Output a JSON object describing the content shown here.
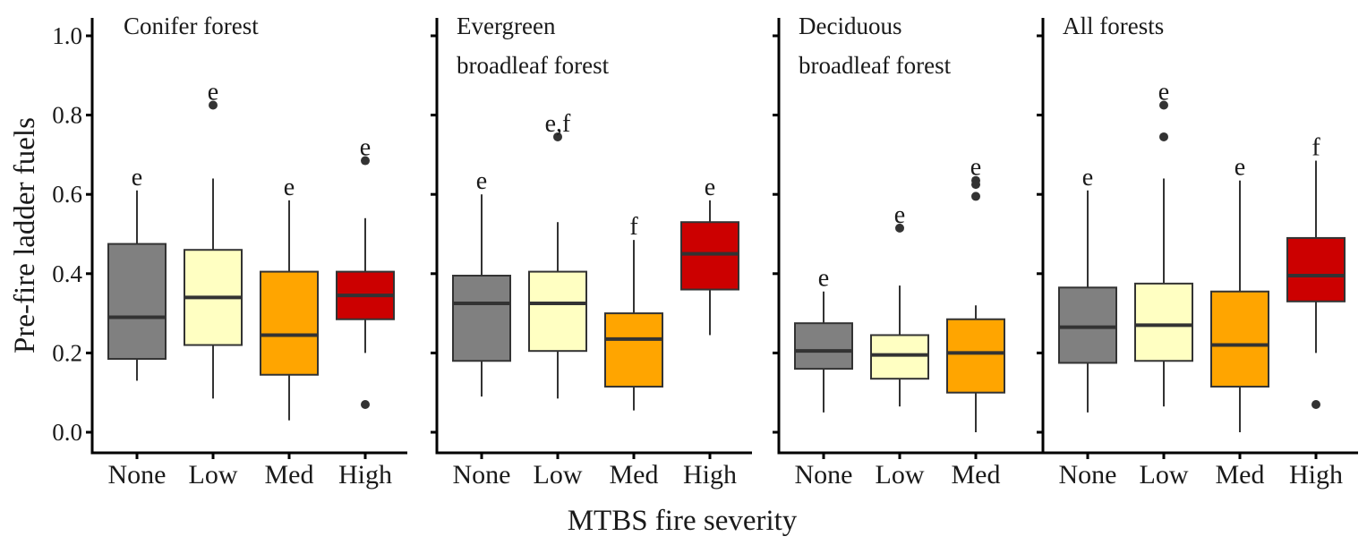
{
  "chart_data": {
    "type": "boxplot",
    "xlabel": "MTBS fire severity",
    "ylabel": "Pre-fire ladder fuels",
    "ylim": [
      0.0,
      1.0
    ],
    "yticks": [
      "0.0",
      "0.2",
      "0.4",
      "0.6",
      "0.8",
      "1.0"
    ],
    "severity_colors": {
      "None": "#808080",
      "Low": "#ffffc2",
      "Med": "#ffa500",
      "High": "#cc0000"
    },
    "panels": [
      {
        "title_lines": [
          "Conifer forest"
        ],
        "categories": [
          "None",
          "Low",
          "Med",
          "High"
        ],
        "boxes": [
          {
            "category": "None",
            "whisker_low": 0.13,
            "q1": 0.185,
            "median": 0.29,
            "q3": 0.475,
            "whisker_high": 0.61,
            "outliers": [],
            "letter": "e"
          },
          {
            "category": "Low",
            "whisker_low": 0.085,
            "q1": 0.22,
            "median": 0.34,
            "q3": 0.46,
            "whisker_high": 0.64,
            "outliers": [
              0.825
            ],
            "letter": "e"
          },
          {
            "category": "Med",
            "whisker_low": 0.03,
            "q1": 0.145,
            "median": 0.245,
            "q3": 0.405,
            "whisker_high": 0.585,
            "outliers": [],
            "letter": "e"
          },
          {
            "category": "High",
            "whisker_low": 0.2,
            "q1": 0.285,
            "median": 0.345,
            "q3": 0.405,
            "whisker_high": 0.54,
            "outliers": [
              0.685,
              0.07
            ],
            "letter": "e"
          }
        ]
      },
      {
        "title_lines": [
          "Evergreen",
          "broadleaf forest"
        ],
        "categories": [
          "None",
          "Low",
          "Med",
          "High"
        ],
        "boxes": [
          {
            "category": "None",
            "whisker_low": 0.09,
            "q1": 0.18,
            "median": 0.325,
            "q3": 0.395,
            "whisker_high": 0.6,
            "outliers": [],
            "letter": "e"
          },
          {
            "category": "Low",
            "whisker_low": 0.085,
            "q1": 0.205,
            "median": 0.325,
            "q3": 0.405,
            "whisker_high": 0.53,
            "outliers": [
              0.745
            ],
            "letter": "e,f"
          },
          {
            "category": "Med",
            "whisker_low": 0.055,
            "q1": 0.115,
            "median": 0.235,
            "q3": 0.3,
            "whisker_high": 0.485,
            "outliers": [],
            "letter": "f"
          },
          {
            "category": "High",
            "whisker_low": 0.245,
            "q1": 0.36,
            "median": 0.45,
            "q3": 0.53,
            "whisker_high": 0.585,
            "outliers": [],
            "letter": "e"
          }
        ]
      },
      {
        "title_lines": [
          "Deciduous",
          "broadleaf forest"
        ],
        "categories": [
          "None",
          "Low",
          "Med"
        ],
        "boxes": [
          {
            "category": "None",
            "whisker_low": 0.05,
            "q1": 0.16,
            "median": 0.205,
            "q3": 0.275,
            "whisker_high": 0.355,
            "outliers": [],
            "letter": "e"
          },
          {
            "category": "Low",
            "whisker_low": 0.065,
            "q1": 0.135,
            "median": 0.195,
            "q3": 0.245,
            "whisker_high": 0.37,
            "outliers": [
              0.515
            ],
            "letter": "e"
          },
          {
            "category": "Med",
            "whisker_low": 0.0,
            "q1": 0.1,
            "median": 0.2,
            "q3": 0.285,
            "whisker_high": 0.32,
            "outliers": [
              0.635,
              0.625,
              0.595
            ],
            "letter": "e"
          }
        ]
      },
      {
        "title_lines": [
          "All forests"
        ],
        "categories": [
          "None",
          "Low",
          "Med",
          "High"
        ],
        "boxes": [
          {
            "category": "None",
            "whisker_low": 0.05,
            "q1": 0.175,
            "median": 0.265,
            "q3": 0.365,
            "whisker_high": 0.61,
            "outliers": [],
            "letter": "e"
          },
          {
            "category": "Low",
            "whisker_low": 0.065,
            "q1": 0.18,
            "median": 0.27,
            "q3": 0.375,
            "whisker_high": 0.64,
            "outliers": [
              0.825,
              0.745
            ],
            "letter": "e"
          },
          {
            "category": "Med",
            "whisker_low": 0.0,
            "q1": 0.115,
            "median": 0.22,
            "q3": 0.355,
            "whisker_high": 0.635,
            "outliers": [],
            "letter": "e"
          },
          {
            "category": "High",
            "whisker_low": 0.2,
            "q1": 0.33,
            "median": 0.395,
            "q3": 0.49,
            "whisker_high": 0.685,
            "outliers": [
              0.07
            ],
            "letter": "f"
          }
        ]
      }
    ]
  }
}
